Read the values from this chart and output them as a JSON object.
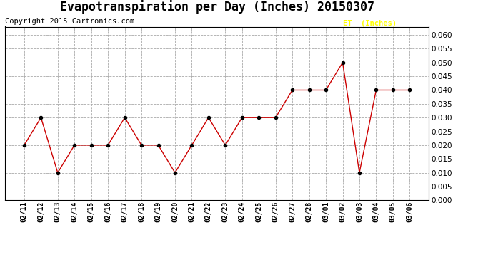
{
  "title": "Evapotranspiration per Day (Inches) 20150307",
  "copyright": "Copyright 2015 Cartronics.com",
  "legend_label": "ET  (Inches)",
  "legend_bg": "#FF0000",
  "legend_text_color": "#FFFF00",
  "line_color": "#CC0000",
  "marker_color": "#000000",
  "dates": [
    "02/11",
    "02/12",
    "02/13",
    "02/14",
    "02/15",
    "02/16",
    "02/17",
    "02/18",
    "02/19",
    "02/20",
    "02/21",
    "02/22",
    "02/23",
    "02/24",
    "02/25",
    "02/26",
    "02/27",
    "02/28",
    "03/01",
    "03/02",
    "03/03",
    "03/04",
    "03/05",
    "03/06"
  ],
  "values": [
    0.02,
    0.03,
    0.01,
    0.02,
    0.02,
    0.02,
    0.03,
    0.02,
    0.02,
    0.01,
    0.02,
    0.03,
    0.02,
    0.03,
    0.03,
    0.03,
    0.04,
    0.04,
    0.04,
    0.05,
    0.01,
    0.04,
    0.04,
    0.04
  ],
  "ylim": [
    0.0,
    0.063
  ],
  "yticks": [
    0.0,
    0.005,
    0.01,
    0.015,
    0.02,
    0.025,
    0.03,
    0.035,
    0.04,
    0.045,
    0.05,
    0.055,
    0.06
  ],
  "background_color": "#FFFFFF",
  "grid_color": "#AAAAAA",
  "title_fontsize": 12,
  "copyright_fontsize": 7.5
}
